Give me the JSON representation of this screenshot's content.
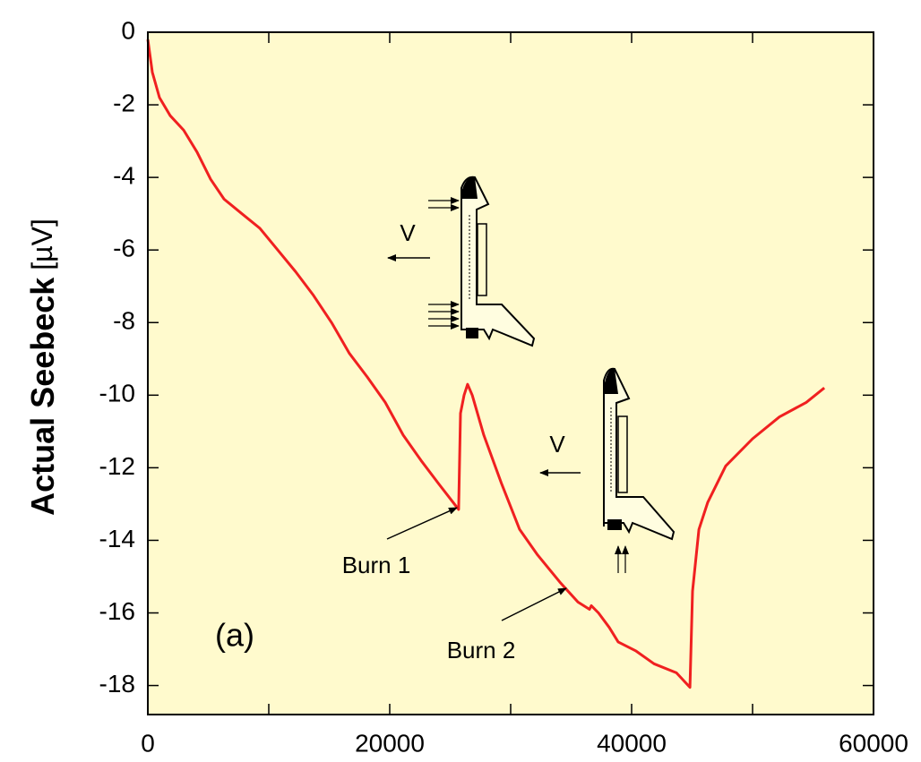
{
  "chart_data": {
    "type": "line",
    "y_label": "Actual Seebeck",
    "y_label_unit": "[µV]",
    "annotations": [
      "Burn 1",
      "Burn 2",
      "(a)",
      "V",
      "V"
    ],
    "color": "#f02020",
    "x": [
      0,
      370,
      960,
      1850,
      2960,
      4070,
      5190,
      6300,
      7780,
      9260,
      10740,
      12220,
      13700,
      15190,
      16670,
      18150,
      19630,
      21110,
      22590,
      24070,
      25700,
      25850,
      26150,
      26440,
      26820,
      27780,
      29260,
      30740,
      32220,
      34070,
      35560,
      36520,
      36670,
      37260,
      38150,
      38890,
      40370,
      41850,
      43700,
      44820,
      45040,
      45560,
      46300,
      47780,
      50000,
      52220,
      54440,
      55930
    ],
    "values": [
      -0.2,
      -1.1,
      -1.8,
      -2.3,
      -2.7,
      -3.3,
      -4.05,
      -4.6,
      -5.0,
      -5.4,
      -6.0,
      -6.6,
      -7.25,
      -8.0,
      -8.85,
      -9.5,
      -10.2,
      -11.1,
      -11.8,
      -12.45,
      -13.15,
      -10.5,
      -10.0,
      -9.7,
      -10.0,
      -11.1,
      -12.45,
      -13.7,
      -14.4,
      -15.15,
      -15.7,
      -15.9,
      -15.8,
      -16.0,
      -16.4,
      -16.8,
      -17.05,
      -17.4,
      -17.65,
      -18.05,
      -15.4,
      -13.7,
      -12.95,
      -11.95,
      -11.2,
      -10.6,
      -10.2,
      -9.8
    ],
    "xlim": [
      0,
      60000
    ],
    "ylim": [
      -18.8,
      0
    ],
    "xticks": [
      0,
      20000,
      40000,
      60000
    ],
    "xminor_ticks": [
      10000,
      30000,
      50000
    ],
    "yticks": [
      0,
      -2,
      -4,
      -6,
      -8,
      -10,
      -12,
      -14,
      -16,
      -18
    ]
  }
}
